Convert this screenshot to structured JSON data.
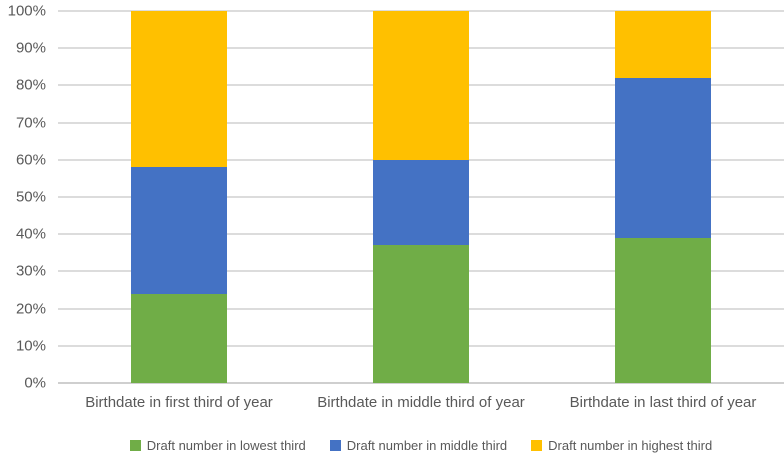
{
  "chart_data": {
    "type": "bar",
    "subtype": "stacked-100-percent",
    "title": "",
    "categories": [
      "Birthdate in first third of year",
      "Birthdate in middle third of year",
      "Birthdate in last third of year"
    ],
    "series": [
      {
        "name": "Draft number in lowest third",
        "color": "#70AD47",
        "values": [
          24,
          37,
          39
        ]
      },
      {
        "name": "Draft number in middle third",
        "color": "#4472C4",
        "values": [
          34,
          23,
          43
        ]
      },
      {
        "name": "Draft number in highest third",
        "color": "#FFC000",
        "values": [
          42,
          40,
          18
        ]
      }
    ],
    "y_axis": {
      "min": 0,
      "max": 100,
      "step": 10,
      "tick_labels": [
        "0%",
        "10%",
        "20%",
        "30%",
        "40%",
        "50%",
        "60%",
        "70%",
        "80%",
        "90%",
        "100%"
      ]
    },
    "x_axis": {
      "label": ""
    },
    "grid": true,
    "legend_position": "bottom",
    "colors": {
      "text": "#595959",
      "gridline": "#DCDCDC",
      "axis_line": "#CFCFCF",
      "background": "#FFFFFF"
    }
  }
}
